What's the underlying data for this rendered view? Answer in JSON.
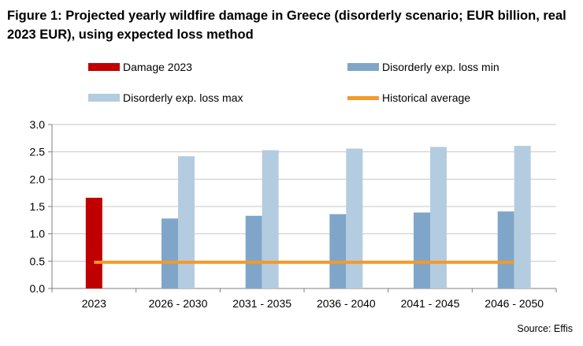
{
  "title": "Figure 1: Projected yearly wildfire damage in Greece (disorderly scenario; EUR billion, real 2023 EUR), using expected loss method",
  "source": "Source: Effis",
  "colors": {
    "damage": "#c00000",
    "exp_min": "#7fa6c9",
    "exp_max": "#b4cce0",
    "historical": "#f39a2b",
    "grid": "#c9c9c9",
    "axis": "#7f7f7f"
  },
  "chart_data": {
    "type": "bar",
    "title": "Figure 1: Projected yearly wildfire damage in Greece (disorderly scenario; EUR billion, real 2023 EUR), using expected loss method",
    "xlabel": "",
    "ylabel": "",
    "ylim": [
      0,
      3.0
    ],
    "yticks": [
      0.0,
      0.5,
      1.0,
      1.5,
      2.0,
      2.5,
      3.0
    ],
    "ytick_labels": [
      "0.0",
      "0.5",
      "1.0",
      "1.5",
      "2.0",
      "2.5",
      "3.0"
    ],
    "grid": true,
    "legend_position": "top",
    "categories": [
      "2023",
      "2026 - 2030",
      "2031 - 2035",
      "2036 - 2040",
      "2041 - 2045",
      "2046 - 2050"
    ],
    "series": [
      {
        "name": "Damage 2023",
        "kind": "bar",
        "color": "#c00000",
        "values": [
          1.66,
          null,
          null,
          null,
          null,
          null
        ]
      },
      {
        "name": "Disorderly exp. loss min",
        "kind": "bar",
        "color": "#7fa6c9",
        "values": [
          null,
          1.28,
          1.33,
          1.36,
          1.39,
          1.41
        ]
      },
      {
        "name": "Disorderly exp. loss max",
        "kind": "bar",
        "color": "#b4cce0",
        "values": [
          null,
          2.42,
          2.53,
          2.56,
          2.59,
          2.61
        ]
      },
      {
        "name": "Historical average",
        "kind": "line",
        "color": "#f39a2b",
        "values": [
          0.48,
          0.48,
          0.48,
          0.48,
          0.48,
          0.48
        ]
      }
    ]
  }
}
